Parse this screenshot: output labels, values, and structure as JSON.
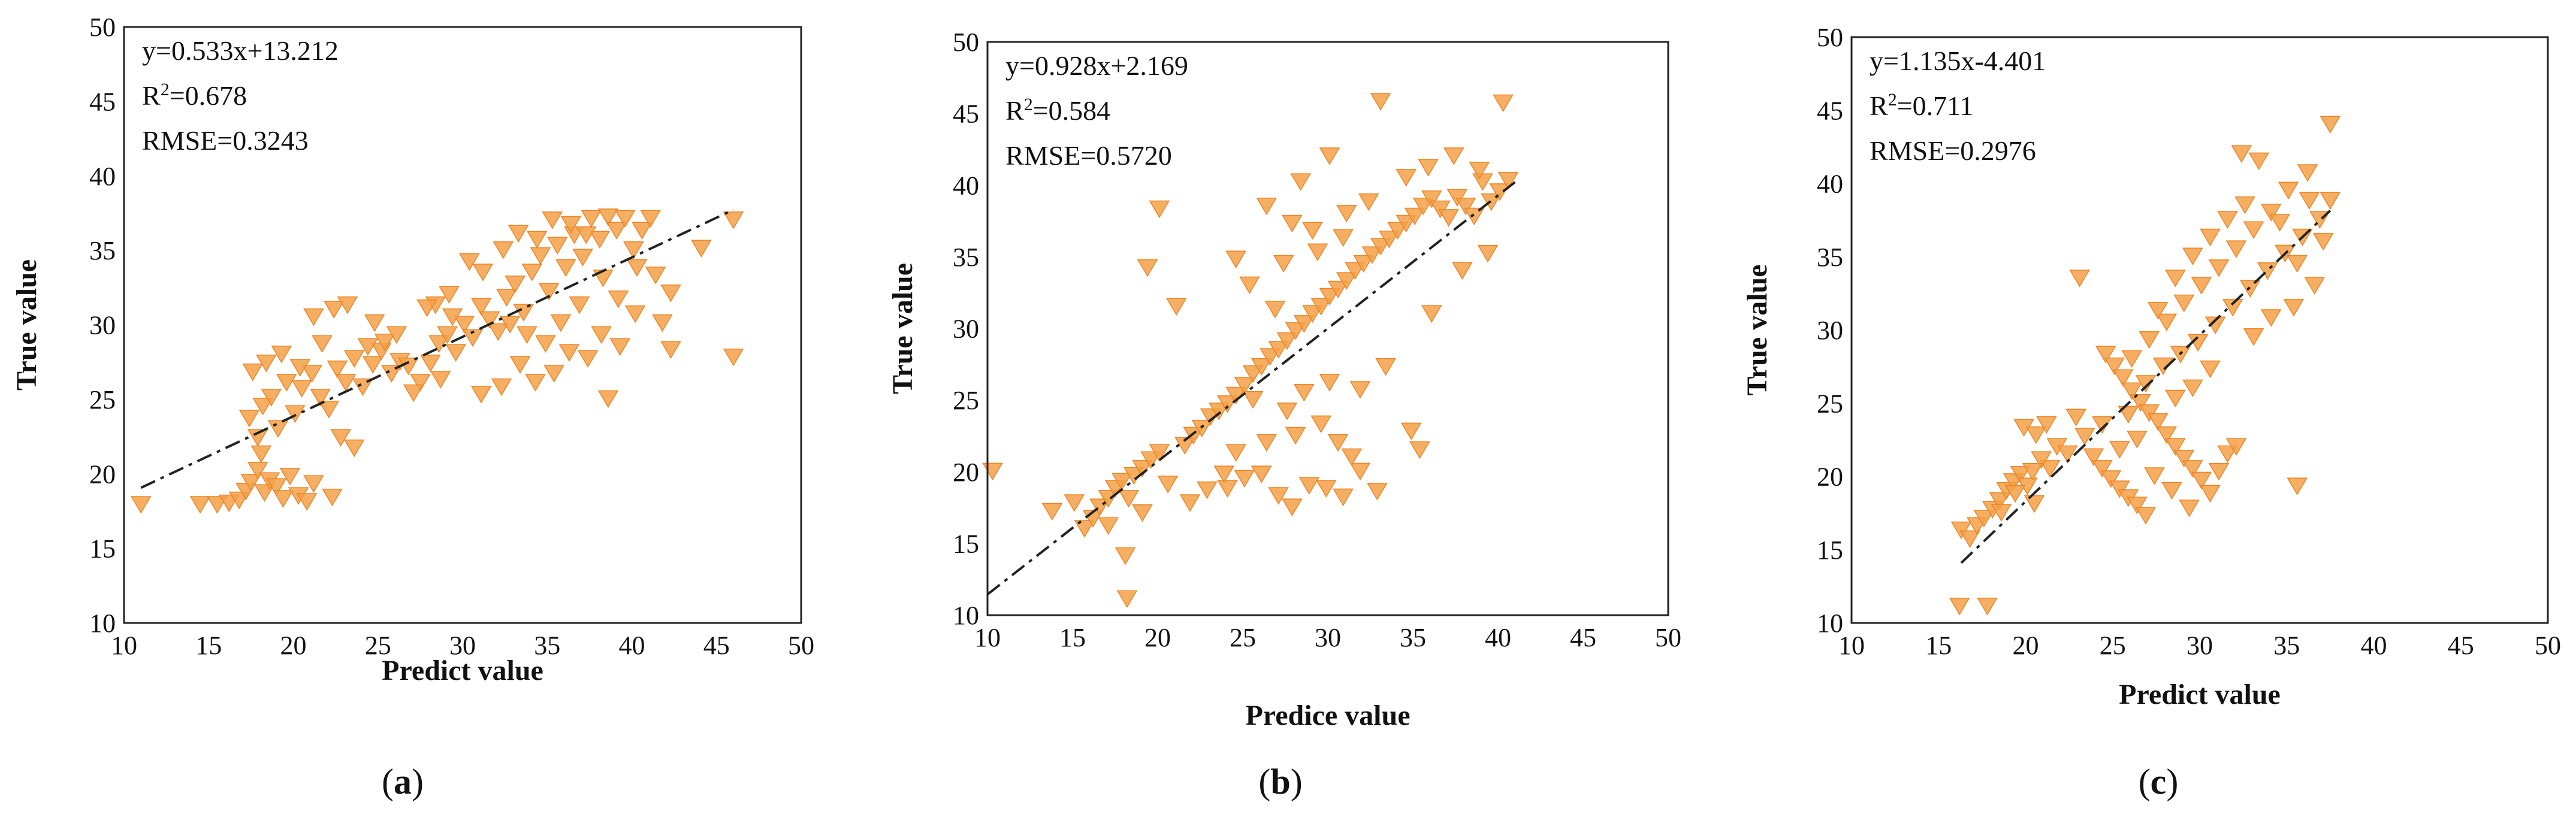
{
  "figure": {
    "marker_color": "#f4a047",
    "marker_stroke": "#e8862a",
    "fit_line_color": "#222222"
  },
  "chart_data": [
    {
      "type": "scatter",
      "panel_label": "a",
      "title": "",
      "xlabel": "Predict value",
      "ylabel": "True value",
      "xlim": [
        10,
        50
      ],
      "ylim": [
        10,
        50
      ],
      "ticks": [
        10,
        15,
        20,
        25,
        30,
        35,
        40,
        45,
        50
      ],
      "annotation": {
        "equation": "y=0.533x+13.212",
        "r2_prefix": "R",
        "r2_sup": "2",
        "r2_value": "=0.678",
        "rmse": "RMSE=0.3243"
      },
      "fit": {
        "slope": 0.533,
        "intercept": 13.212,
        "x_range": [
          11,
          46
        ]
      },
      "points": [
        [
          11,
          18
        ],
        [
          14.5,
          18
        ],
        [
          15.5,
          18
        ],
        [
          16.2,
          18.1
        ],
        [
          16.8,
          18.3
        ],
        [
          17.2,
          18.9
        ],
        [
          17.5,
          19.5
        ],
        [
          17.9,
          20.3
        ],
        [
          18.3,
          18.8
        ],
        [
          18.6,
          19.6
        ],
        [
          19,
          19.2
        ],
        [
          19.4,
          18.4
        ],
        [
          19.8,
          19.9
        ],
        [
          20.3,
          18.6
        ],
        [
          20.8,
          18.2
        ],
        [
          21.2,
          19.4
        ],
        [
          22.3,
          18.5
        ],
        [
          17.4,
          23.8
        ],
        [
          17.9,
          22.5
        ],
        [
          18.2,
          24.6
        ],
        [
          18.7,
          25.2
        ],
        [
          19.1,
          23.1
        ],
        [
          19.6,
          26.2
        ],
        [
          20.1,
          24.1
        ],
        [
          20.5,
          25.8
        ],
        [
          21.1,
          26.8
        ],
        [
          21.6,
          25.2
        ],
        [
          22.1,
          24.4
        ],
        [
          22.6,
          27.1
        ],
        [
          23.1,
          26.2
        ],
        [
          23.6,
          27.8
        ],
        [
          24.1,
          25.9
        ],
        [
          24.7,
          27.4
        ],
        [
          25.2,
          28.3
        ],
        [
          25.8,
          26.8
        ],
        [
          26.3,
          27.6
        ],
        [
          21.2,
          30.6
        ],
        [
          22.4,
          31.1
        ],
        [
          23.2,
          31.4
        ],
        [
          24.8,
          30.2
        ],
        [
          23.6,
          21.8
        ],
        [
          22.8,
          22.5
        ],
        [
          18.1,
          21.4
        ],
        [
          17.6,
          26.9
        ],
        [
          18.4,
          27.5
        ],
        [
          19.3,
          28.1
        ],
        [
          20.4,
          27.2
        ],
        [
          21.7,
          28.8
        ],
        [
          25.4,
          28.9
        ],
        [
          26.8,
          27.3
        ],
        [
          27.5,
          26.2
        ],
        [
          27.1,
          25.5
        ],
        [
          28.1,
          27.5
        ],
        [
          28.6,
          28.8
        ],
        [
          29.1,
          29.4
        ],
        [
          29.6,
          28.2
        ],
        [
          30.1,
          30.1
        ],
        [
          30.6,
          29.2
        ],
        [
          31.1,
          31.3
        ],
        [
          31.6,
          30.4
        ],
        [
          32.1,
          29.6
        ],
        [
          32.6,
          31.9
        ],
        [
          33.1,
          32.8
        ],
        [
          33.6,
          30.9
        ],
        [
          34.1,
          33.6
        ],
        [
          34.6,
          34.7
        ],
        [
          35.1,
          32.3
        ],
        [
          35.6,
          35.4
        ],
        [
          36.1,
          33.9
        ],
        [
          36.6,
          36.1
        ],
        [
          37.1,
          34.6
        ],
        [
          37.6,
          37.2
        ],
        [
          38.1,
          35.8
        ],
        [
          38.6,
          37.3
        ],
        [
          39.1,
          36.4
        ],
        [
          39.6,
          37.2
        ],
        [
          40.1,
          35.1
        ],
        [
          40.6,
          36.4
        ],
        [
          41.1,
          37.2
        ],
        [
          28.4,
          31.4
        ],
        [
          29.2,
          32.1
        ],
        [
          30.4,
          34.3
        ],
        [
          31.2,
          33.6
        ],
        [
          32.4,
          35.1
        ],
        [
          33.3,
          36.2
        ],
        [
          34.4,
          35.8
        ],
        [
          35.3,
          37.1
        ],
        [
          36.4,
          36.8
        ],
        [
          37.3,
          36.1
        ],
        [
          38.3,
          33.2
        ],
        [
          39.2,
          31.8
        ],
        [
          40.3,
          33.9
        ],
        [
          41.4,
          33.4
        ],
        [
          42.3,
          32.2
        ],
        [
          41.8,
          30.2
        ],
        [
          40.2,
          30.8
        ],
        [
          39.3,
          28.6
        ],
        [
          38.2,
          29.4
        ],
        [
          37.4,
          27.8
        ],
        [
          36.3,
          28.2
        ],
        [
          35.4,
          26.8
        ],
        [
          34.3,
          26.2
        ],
        [
          33.4,
          27.4
        ],
        [
          32.3,
          25.9
        ],
        [
          31.1,
          25.4
        ],
        [
          38.6,
          25.1
        ],
        [
          42.3,
          28.4
        ],
        [
          44.1,
          35.2
        ],
        [
          46,
          37.1
        ],
        [
          46,
          27.9
        ],
        [
          29.4,
          30.6
        ],
        [
          27.9,
          31.2
        ],
        [
          26.1,
          29.4
        ],
        [
          24.4,
          28.6
        ],
        [
          28.7,
          26.4
        ],
        [
          33.8,
          29.4
        ],
        [
          35.8,
          30.2
        ],
        [
          36.9,
          31.4
        ],
        [
          34.9,
          28.8
        ],
        [
          32.8,
          30.1
        ]
      ]
    },
    {
      "type": "scatter",
      "panel_label": "b",
      "title": "",
      "xlabel": "Predice value",
      "ylabel": "True value",
      "xlim": [
        10,
        50
      ],
      "ylim": [
        10,
        50
      ],
      "ticks": [
        10,
        15,
        20,
        25,
        30,
        35,
        40,
        45,
        50
      ],
      "annotation": {
        "equation": "y=0.928x+2.169",
        "r2_prefix": "R",
        "r2_sup": "2",
        "r2_value": "=0.584",
        "rmse": "RMSE=0.5720"
      },
      "fit": {
        "slope": 0.928,
        "intercept": 2.169,
        "x_range": [
          10,
          41
        ]
      },
      "points": [
        [
          10.3,
          20.1
        ],
        [
          13.8,
          17.3
        ],
        [
          15.1,
          17.9
        ],
        [
          15.7,
          16.1
        ],
        [
          16.2,
          16.8
        ],
        [
          16.6,
          17.6
        ],
        [
          17.1,
          18.2
        ],
        [
          17.5,
          18.9
        ],
        [
          17.9,
          19.4
        ],
        [
          18.3,
          18.2
        ],
        [
          18.6,
          19.8
        ],
        [
          19.1,
          20.3
        ],
        [
          19.6,
          20.9
        ],
        [
          20.1,
          21.4
        ],
        [
          18.1,
          14.2
        ],
        [
          18.2,
          11.2
        ],
        [
          20.1,
          38.4
        ],
        [
          19.4,
          34.3
        ],
        [
          21.1,
          31.6
        ],
        [
          20.6,
          19.2
        ],
        [
          21.6,
          21.9
        ],
        [
          22.1,
          22.6
        ],
        [
          22.6,
          23.1
        ],
        [
          23.1,
          23.9
        ],
        [
          23.6,
          24.3
        ],
        [
          24.1,
          24.8
        ],
        [
          24.6,
          25.4
        ],
        [
          25.1,
          26.1
        ],
        [
          25.6,
          26.9
        ],
        [
          26.1,
          27.4
        ],
        [
          26.6,
          28.1
        ],
        [
          27.1,
          28.6
        ],
        [
          27.6,
          29.2
        ],
        [
          28.1,
          29.9
        ],
        [
          28.6,
          30.4
        ],
        [
          29.1,
          31.1
        ],
        [
          29.6,
          31.6
        ],
        [
          30.1,
          32.3
        ],
        [
          30.6,
          32.8
        ],
        [
          31.1,
          33.4
        ],
        [
          31.6,
          34.1
        ],
        [
          32.1,
          34.6
        ],
        [
          32.6,
          35.2
        ],
        [
          33.1,
          35.8
        ],
        [
          33.6,
          36.3
        ],
        [
          34.1,
          36.9
        ],
        [
          34.6,
          37.4
        ],
        [
          35.1,
          37.9
        ],
        [
          35.6,
          38.6
        ],
        [
          36.1,
          39.1
        ],
        [
          36.6,
          38.4
        ],
        [
          37.1,
          37.8
        ],
        [
          37.6,
          39.2
        ],
        [
          38.1,
          38.6
        ],
        [
          38.6,
          37.9
        ],
        [
          39.1,
          40.3
        ],
        [
          39.6,
          38.9
        ],
        [
          40.1,
          39.6
        ],
        [
          40.6,
          40.4
        ],
        [
          40.3,
          45.8
        ],
        [
          33.1,
          45.9
        ],
        [
          30.1,
          42.1
        ],
        [
          28.4,
          40.3
        ],
        [
          26.4,
          38.6
        ],
        [
          27.9,
          37.4
        ],
        [
          29.1,
          36.9
        ],
        [
          31.1,
          38.1
        ],
        [
          32.4,
          38.9
        ],
        [
          34.6,
          40.6
        ],
        [
          35.9,
          41.3
        ],
        [
          37.4,
          42.1
        ],
        [
          38.9,
          41.1
        ],
        [
          24.6,
          34.9
        ],
        [
          25.4,
          33.1
        ],
        [
          26.9,
          31.4
        ],
        [
          27.4,
          34.6
        ],
        [
          29.4,
          35.4
        ],
        [
          30.9,
          36.4
        ],
        [
          24.1,
          18.9
        ],
        [
          25.1,
          19.6
        ],
        [
          26.1,
          19.9
        ],
        [
          27.1,
          18.4
        ],
        [
          27.9,
          17.6
        ],
        [
          28.9,
          19.1
        ],
        [
          29.9,
          18.9
        ],
        [
          30.9,
          18.3
        ],
        [
          31.9,
          20.1
        ],
        [
          32.9,
          18.7
        ],
        [
          24.6,
          21.4
        ],
        [
          26.4,
          22.1
        ],
        [
          28.1,
          22.6
        ],
        [
          29.6,
          23.4
        ],
        [
          30.6,
          22.1
        ],
        [
          31.4,
          21.1
        ],
        [
          25.6,
          25.1
        ],
        [
          27.6,
          24.3
        ],
        [
          28.6,
          25.6
        ],
        [
          30.1,
          26.3
        ],
        [
          31.9,
          25.8
        ],
        [
          33.4,
          27.4
        ],
        [
          34.9,
          22.9
        ],
        [
          35.4,
          21.6
        ],
        [
          36.1,
          31.1
        ],
        [
          37.9,
          34.1
        ],
        [
          39.4,
          35.3
        ],
        [
          21.9,
          17.9
        ],
        [
          22.9,
          18.8
        ],
        [
          23.9,
          19.9
        ],
        [
          17.1,
          16.3
        ],
        [
          19.1,
          17.2
        ]
      ]
    },
    {
      "type": "scatter",
      "panel_label": "c",
      "title": "",
      "xlabel": "Predict value",
      "ylabel": "True value",
      "xlim": [
        10,
        50
      ],
      "ylim": [
        10,
        50
      ],
      "ticks": [
        10,
        15,
        20,
        25,
        30,
        35,
        40,
        45,
        50
      ],
      "annotation": {
        "equation": "y=1.135x-4.401",
        "r2_prefix": "R",
        "r2_sup": "2",
        "r2_value": "=0.711",
        "rmse": "RMSE=0.2976"
      },
      "fit": {
        "slope": 1.135,
        "intercept": -4.401,
        "x_range": [
          16.3,
          37.5
        ]
      },
      "points": [
        [
          16.2,
          11.2
        ],
        [
          17.8,
          11.2
        ],
        [
          16.3,
          16.4
        ],
        [
          16.8,
          15.8
        ],
        [
          17.2,
          16.7
        ],
        [
          17.6,
          17.2
        ],
        [
          18.1,
          17.8
        ],
        [
          18.5,
          18.4
        ],
        [
          18.9,
          19.1
        ],
        [
          19.3,
          19.7
        ],
        [
          19.7,
          20.2
        ],
        [
          20.1,
          19.4
        ],
        [
          20.5,
          18.2
        ],
        [
          19.9,
          23.4
        ],
        [
          20.6,
          22.9
        ],
        [
          21.2,
          23.6
        ],
        [
          21.8,
          22.1
        ],
        [
          22.4,
          21.6
        ],
        [
          23.1,
          33.6
        ],
        [
          23.4,
          22.8
        ],
        [
          23.9,
          21.4
        ],
        [
          24.4,
          20.6
        ],
        [
          24.9,
          19.9
        ],
        [
          25.4,
          19.2
        ],
        [
          25.9,
          18.6
        ],
        [
          26.4,
          18.1
        ],
        [
          26.9,
          17.4
        ],
        [
          24.6,
          28.4
        ],
        [
          25.1,
          27.6
        ],
        [
          25.6,
          26.8
        ],
        [
          26.1,
          25.9
        ],
        [
          26.6,
          25.1
        ],
        [
          27.1,
          24.4
        ],
        [
          27.6,
          23.8
        ],
        [
          28.1,
          22.9
        ],
        [
          28.6,
          22.1
        ],
        [
          29.1,
          21.3
        ],
        [
          29.6,
          20.6
        ],
        [
          30.1,
          19.8
        ],
        [
          30.6,
          18.9
        ],
        [
          31.1,
          20.4
        ],
        [
          31.6,
          21.6
        ],
        [
          32.1,
          22.1
        ],
        [
          25.9,
          24.3
        ],
        [
          26.9,
          26.4
        ],
        [
          27.9,
          27.6
        ],
        [
          28.9,
          28.4
        ],
        [
          29.9,
          29.2
        ],
        [
          30.9,
          30.4
        ],
        [
          31.9,
          31.6
        ],
        [
          32.9,
          32.9
        ],
        [
          33.9,
          34.1
        ],
        [
          34.9,
          35.3
        ],
        [
          35.9,
          36.4
        ],
        [
          36.9,
          37.6
        ],
        [
          37.5,
          38.9
        ],
        [
          37.5,
          44.1
        ],
        [
          36.2,
          40.8
        ],
        [
          35.1,
          39.6
        ],
        [
          34.1,
          38.1
        ],
        [
          33.1,
          36.9
        ],
        [
          32.1,
          35.6
        ],
        [
          31.1,
          34.3
        ],
        [
          30.1,
          33.1
        ],
        [
          29.1,
          31.9
        ],
        [
          28.1,
          30.6
        ],
        [
          27.1,
          29.4
        ],
        [
          26.1,
          28.1
        ],
        [
          33.4,
          41.6
        ],
        [
          32.4,
          42.1
        ],
        [
          34.6,
          37.4
        ],
        [
          35.6,
          34.6
        ],
        [
          36.6,
          33.1
        ],
        [
          37.1,
          36.1
        ],
        [
          36.3,
          38.9
        ],
        [
          35.4,
          31.6
        ],
        [
          34.1,
          30.9
        ],
        [
          33.1,
          29.6
        ],
        [
          30.6,
          27.4
        ],
        [
          29.6,
          26.1
        ],
        [
          28.6,
          25.4
        ],
        [
          27.6,
          31.4
        ],
        [
          28.6,
          33.6
        ],
        [
          29.6,
          35.1
        ],
        [
          30.6,
          36.4
        ],
        [
          31.6,
          37.6
        ],
        [
          32.6,
          38.6
        ],
        [
          35.6,
          19.4
        ],
        [
          24.4,
          23.6
        ],
        [
          22.9,
          24.1
        ],
        [
          21.4,
          20.6
        ],
        [
          20.9,
          21.2
        ],
        [
          25.4,
          21.9
        ],
        [
          26.4,
          22.6
        ],
        [
          27.4,
          20.1
        ],
        [
          28.4,
          19.1
        ],
        [
          29.4,
          17.9
        ],
        [
          19.4,
          18.9
        ],
        [
          18.6,
          17.6
        ],
        [
          20.4,
          20.4
        ]
      ]
    }
  ]
}
